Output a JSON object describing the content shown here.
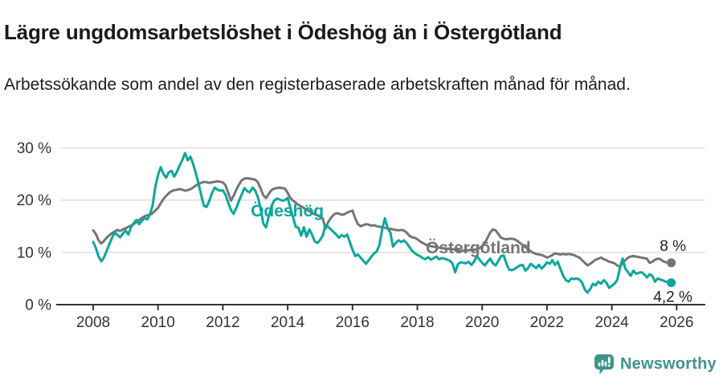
{
  "header": {
    "title": "Lägre ungdomsarbetslöshet i Ödeshög än i Östergötland",
    "subtitle": "Arbetssökande som andel av den registerbaserade arbetskraften månad för månad."
  },
  "chart_data": {
    "type": "line",
    "title": "Lägre ungdomsarbetslöshet i Ödeshög än i Östergötland",
    "subtitle": "Arbetssökande som andel av den registerbaserade arbetskraften månad för månad.",
    "x_unit": "monthly, January 2008 – November 2025",
    "x_start": 2008,
    "points_per_year": 12,
    "xlim": [
      2008,
      2026
    ],
    "ylim": [
      0,
      30
    ],
    "grid": "horizontal",
    "legend_position": "inline-labels",
    "y_ticks": [
      {
        "value": 0,
        "label": "0 %"
      },
      {
        "value": 10,
        "label": "10 %"
      },
      {
        "value": 20,
        "label": "20 %"
      },
      {
        "value": 30,
        "label": "30 %"
      }
    ],
    "x_ticks": [
      {
        "value": 2008,
        "label": "2008"
      },
      {
        "value": 2010,
        "label": "2010"
      },
      {
        "value": 2012,
        "label": "2012"
      },
      {
        "value": 2014,
        "label": "2014"
      },
      {
        "value": 2016,
        "label": "2016"
      },
      {
        "value": 2018,
        "label": "2018"
      },
      {
        "value": 2020,
        "label": "2020"
      },
      {
        "value": 2022,
        "label": "2022"
      },
      {
        "value": 2024,
        "label": "2024"
      },
      {
        "value": 2026,
        "label": "2026"
      }
    ],
    "series": [
      {
        "id": "odeshog",
        "name": "Ödeshög",
        "color": "#0aa79b",
        "end_label": "4,2 %",
        "last_value": 4.2,
        "end_label_side": "below",
        "label_anchor": {
          "x": 2012.86,
          "y": 16.9
        },
        "values": [
          12.0,
          10.8,
          9.2,
          8.3,
          9.0,
          10.3,
          11.6,
          12.8,
          13.8,
          13.3,
          12.9,
          13.6,
          14.2,
          13.4,
          14.8,
          15.6,
          16.2,
          15.4,
          16.0,
          16.6,
          16.3,
          17.2,
          19.0,
          22.5,
          24.8,
          26.3,
          25.0,
          24.3,
          25.3,
          25.6,
          24.5,
          25.4,
          26.6,
          27.7,
          29.0,
          27.6,
          28.3,
          26.9,
          25.1,
          23.2,
          20.9,
          18.9,
          18.7,
          19.9,
          21.4,
          22.4,
          22.0,
          21.8,
          21.9,
          21.0,
          19.5,
          18.1,
          17.4,
          18.5,
          19.9,
          21.1,
          22.3,
          21.7,
          21.5,
          22.4,
          21.8,
          20.5,
          18.3,
          15.5,
          14.8,
          16.9,
          18.8,
          19.9,
          20.3,
          20.1,
          19.9,
          20.0,
          20.4,
          18.5,
          16.7,
          14.9,
          14.7,
          13.2,
          14.8,
          13.0,
          14.4,
          13.4,
          12.1,
          11.8,
          12.4,
          13.2,
          15.3,
          14.9,
          14.4,
          13.9,
          13.4,
          12.8,
          13.3,
          13.0,
          13.4,
          12.0,
          10.5,
          9.3,
          9.6,
          9.0,
          8.4,
          7.8,
          8.5,
          9.2,
          9.8,
          10.2,
          11.5,
          14.5,
          16.5,
          14.6,
          13.8,
          11.1,
          11.8,
          12.3,
          12.0,
          12.3,
          11.8,
          11.1,
          10.3,
          9.9,
          9.5,
          9.3,
          8.9,
          8.7,
          9.1,
          8.6,
          8.9,
          9.2,
          8.7,
          8.9,
          8.8,
          8.6,
          8.4,
          7.9,
          6.2,
          7.7,
          8.1,
          8.0,
          7.9,
          8.2,
          7.6,
          8.2,
          9.3,
          8.6,
          8.0,
          7.5,
          8.2,
          8.8,
          7.9,
          7.5,
          8.4,
          9.3,
          9.4,
          7.8,
          6.7,
          6.6,
          6.8,
          7.2,
          7.5,
          7.6,
          6.5,
          7.0,
          7.8,
          7.4,
          7.0,
          7.6,
          6.9,
          7.4,
          8.1,
          7.8,
          8.5,
          7.6,
          8.2,
          6.8,
          5.5,
          4.7,
          4.4,
          5.0,
          4.9,
          5.0,
          4.8,
          4.2,
          2.9,
          2.3,
          3.0,
          4.0,
          3.7,
          4.4,
          4.0,
          4.7,
          4.2,
          3.2,
          3.6,
          4.0,
          4.7,
          7.0,
          8.8,
          6.9,
          6.2,
          5.5,
          6.5,
          5.9,
          6.1,
          6.2,
          5.8,
          5.2,
          5.8,
          5.5,
          4.4,
          5.0,
          4.8,
          4.6,
          4.4,
          4.3,
          4.2
        ]
      },
      {
        "id": "ostergotland",
        "name": "Östergötland",
        "color": "#757575",
        "end_label": "8 %",
        "last_value": 8.0,
        "end_label_side": "above",
        "label_anchor": {
          "x": 2018.26,
          "y": 9.8
        },
        "values": [
          14.2,
          13.5,
          12.3,
          11.7,
          12.2,
          12.8,
          13.3,
          13.7,
          14.0,
          14.3,
          14.1,
          14.4,
          14.6,
          14.9,
          15.1,
          15.4,
          15.8,
          16.2,
          16.6,
          16.9,
          17.1,
          17.2,
          17.5,
          18.0,
          18.5,
          19.4,
          20.2,
          20.8,
          21.3,
          21.7,
          21.9,
          22.0,
          22.1,
          22.0,
          21.8,
          21.9,
          22.1,
          22.4,
          22.8,
          23.1,
          23.3,
          23.5,
          23.4,
          23.3,
          23.4,
          23.5,
          23.6,
          23.5,
          23.4,
          22.8,
          21.4,
          19.9,
          20.8,
          22.0,
          23.0,
          23.8,
          24.1,
          24.2,
          24.1,
          24.0,
          23.9,
          23.4,
          22.2,
          20.9,
          20.4,
          21.2,
          21.9,
          22.2,
          22.3,
          22.4,
          22.3,
          22.2,
          21.4,
          20.4,
          19.9,
          19.5,
          19.1,
          18.8,
          18.5,
          18.2,
          17.9,
          17.6,
          17.3,
          17.1,
          16.8,
          16.5,
          14.5,
          15.8,
          16.6,
          17.2,
          17.5,
          17.4,
          17.2,
          17.3,
          17.6,
          17.8,
          18.0,
          16.5,
          15.4,
          15.0,
          15.2,
          15.4,
          15.3,
          15.1,
          15.2,
          15.0,
          14.9,
          14.8,
          14.7,
          14.6,
          14.5,
          14.4,
          14.3,
          14.2,
          14.3,
          14.2,
          13.8,
          13.2,
          12.9,
          12.8,
          12.5,
          12.1,
          11.8,
          11.5,
          11.3,
          11.2,
          11.1,
          11.0,
          10.9,
          10.8,
          10.8,
          10.7,
          10.7,
          10.6,
          10.5,
          10.4,
          10.3,
          10.3,
          10.4,
          10.4,
          10.5,
          10.5,
          10.6,
          10.8,
          11.2,
          11.8,
          12.8,
          13.8,
          14.4,
          14.2,
          13.5,
          12.8,
          12.6,
          12.5,
          12.6,
          12.6,
          12.5,
          12.2,
          11.8,
          11.4,
          11.0,
          10.6,
          10.2,
          9.9,
          9.7,
          9.6,
          9.5,
          9.3,
          9.0,
          9.2,
          9.5,
          9.8,
          9.7,
          9.6,
          9.7,
          9.6,
          9.7,
          9.6,
          9.5,
          9.2,
          9.0,
          8.5,
          8.0,
          7.5,
          7.8,
          8.2,
          8.6,
          8.8,
          9.0,
          8.7,
          8.5,
          8.2,
          8.1,
          7.9,
          7.5,
          7.3,
          7.9,
          8.5,
          9.0,
          9.2,
          9.3,
          9.2,
          9.1,
          9.0,
          8.9,
          8.8,
          8.0,
          8.2,
          8.6,
          8.8,
          8.7,
          8.3,
          8.1,
          8.1,
          8.0
        ]
      }
    ]
  },
  "footer": {
    "brand": "Newsworthy",
    "brand_color": "#3d948e",
    "logo_icon": "newsworthy-logo-icon"
  }
}
